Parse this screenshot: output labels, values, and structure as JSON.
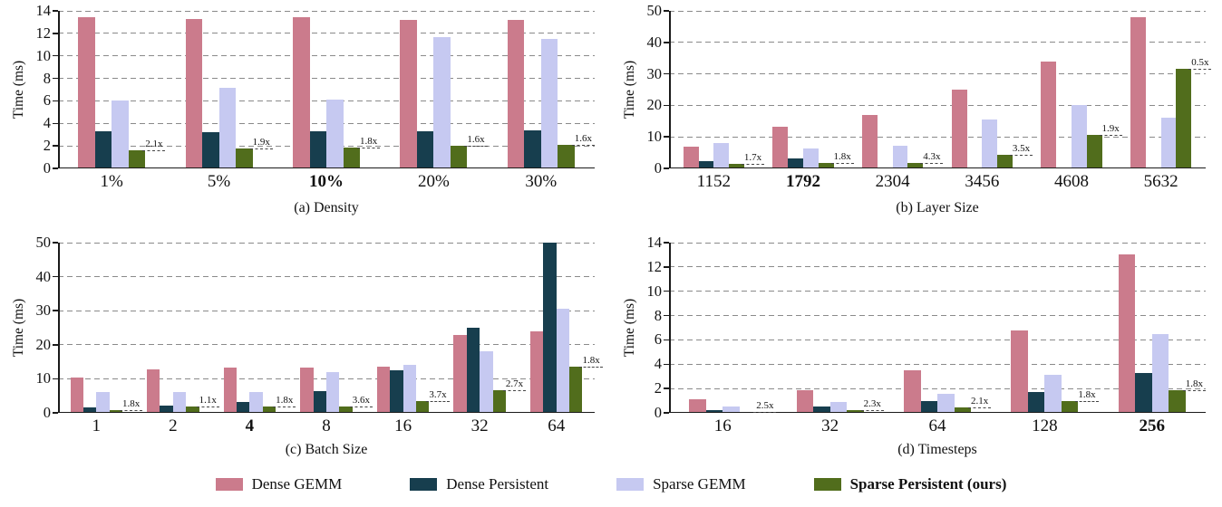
{
  "legend": {
    "items": [
      {
        "label": "Dense GEMM",
        "color": "#cb7b8c",
        "bold": false
      },
      {
        "label": "Dense Persistent",
        "color": "#173e4e",
        "bold": false
      },
      {
        "label": "Sparse GEMM",
        "color": "#c6c9f1",
        "bold": false
      },
      {
        "label": "Sparse Persistent (ours)",
        "color": "#516d1c",
        "bold": true
      }
    ]
  },
  "chart_data": [
    {
      "id": "density",
      "type": "bar",
      "caption": "(a) Density",
      "ylabel": "Time (ms)",
      "ylim": [
        0,
        14
      ],
      "yticks": [
        0,
        2,
        4,
        6,
        8,
        10,
        12,
        14
      ],
      "categories": [
        "1%",
        "5%",
        "10%",
        "20%",
        "30%"
      ],
      "bold_category_indices": [
        2
      ],
      "grid": "dashed-horizontal",
      "series": [
        {
          "name": "Dense GEMM",
          "values": [
            13.4,
            13.3,
            13.4,
            13.2,
            13.2
          ]
        },
        {
          "name": "Dense Persistent",
          "values": [
            3.3,
            3.25,
            3.3,
            3.3,
            3.35
          ]
        },
        {
          "name": "Sparse GEMM",
          "values": [
            6.0,
            7.2,
            6.15,
            11.7,
            11.5
          ]
        },
        {
          "name": "Sparse Persistent (ours)",
          "values": [
            1.6,
            1.75,
            1.85,
            2.05,
            2.1
          ]
        }
      ],
      "annotations": [
        "2.1x",
        "1.9x",
        "1.8x",
        "1.6x",
        "1.6x"
      ]
    },
    {
      "id": "layer-size",
      "type": "bar",
      "caption": "(b) Layer Size",
      "ylabel": "Time (ms)",
      "ylim": [
        0,
        50
      ],
      "yticks": [
        0,
        10,
        20,
        30,
        40,
        50
      ],
      "categories": [
        "1152",
        "1792",
        "2304",
        "3456",
        "4608",
        "5632"
      ],
      "bold_category_indices": [
        1
      ],
      "grid": "dashed-horizontal",
      "series": [
        {
          "name": "Dense GEMM",
          "values": [
            7.0,
            13.3,
            17.0,
            25.0,
            34.0,
            48.0
          ]
        },
        {
          "name": "Dense Persistent",
          "values": [
            2.4,
            3.3,
            null,
            null,
            null,
            null
          ]
        },
        {
          "name": "Sparse GEMM",
          "values": [
            8.0,
            6.2,
            7.3,
            15.5,
            20.0,
            16.2
          ]
        },
        {
          "name": "Sparse Persistent (ours)",
          "values": [
            1.4,
            1.85,
            1.7,
            4.4,
            10.7,
            31.5
          ]
        }
      ],
      "annotations": [
        "1.7x",
        "1.8x",
        "4.3x",
        "3.5x",
        "1.9x",
        "0.5x"
      ]
    },
    {
      "id": "batch-size",
      "type": "bar",
      "caption": "(c) Batch Size",
      "ylabel": "Time (ms)",
      "ylim": [
        0,
        50
      ],
      "yticks": [
        0,
        10,
        20,
        30,
        40,
        50
      ],
      "categories": [
        "1",
        "2",
        "4",
        "8",
        "16",
        "32",
        "64"
      ],
      "bold_category_indices": [
        2
      ],
      "grid": "dashed-horizontal",
      "series": [
        {
          "name": "Dense GEMM",
          "values": [
            10.5,
            12.7,
            13.3,
            13.3,
            13.7,
            23.0,
            24.0
          ]
        },
        {
          "name": "Dense Persistent",
          "values": [
            1.5,
            2.0,
            3.3,
            6.5,
            12.5,
            25.0,
            50.0
          ]
        },
        {
          "name": "Sparse GEMM",
          "values": [
            6.0,
            6.0,
            6.2,
            12.0,
            14.0,
            18.0,
            30.5
          ]
        },
        {
          "name": "Sparse Persistent (ours)",
          "values": [
            0.85,
            1.8,
            1.85,
            1.8,
            3.4,
            6.7,
            13.5
          ]
        }
      ],
      "annotations": [
        "1.8x",
        "1.1x",
        "1.8x",
        "3.6x",
        "3.7x",
        "2.7x",
        "1.8x"
      ]
    },
    {
      "id": "timesteps",
      "type": "bar",
      "caption": "(d) Timesteps",
      "ylabel": "Time (ms)",
      "ylim": [
        0,
        14
      ],
      "yticks": [
        0,
        2,
        4,
        6,
        8,
        10,
        12,
        14
      ],
      "categories": [
        "16",
        "32",
        "64",
        "128",
        "256"
      ],
      "bold_category_indices": [
        4
      ],
      "grid": "dashed-horizontal",
      "series": [
        {
          "name": "Dense GEMM",
          "values": [
            1.15,
            1.9,
            3.5,
            6.8,
            13.0
          ]
        },
        {
          "name": "Dense Persistent",
          "values": [
            0.25,
            0.5,
            1.0,
            1.75,
            3.3
          ]
        },
        {
          "name": "Sparse GEMM",
          "values": [
            0.5,
            0.9,
            1.6,
            3.1,
            6.5
          ]
        },
        {
          "name": "Sparse Persistent (ours)",
          "values": [
            0.1,
            0.22,
            0.45,
            0.95,
            1.85
          ]
        }
      ],
      "annotations": [
        "2.5x",
        "2.3x",
        "2.1x",
        "1.8x",
        "1.8x"
      ]
    }
  ]
}
